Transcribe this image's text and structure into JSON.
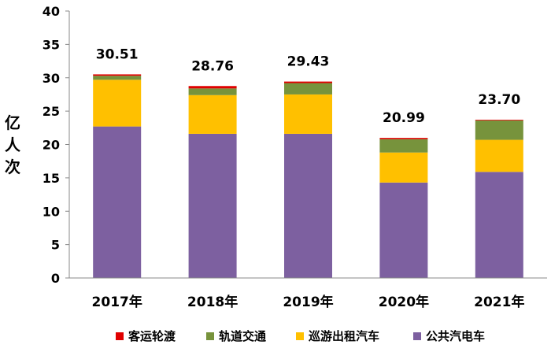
{
  "chart_data": {
    "type": "bar",
    "stacked": true,
    "categories": [
      "2017年",
      "2018年",
      "2019年",
      "2020年",
      "2021年"
    ],
    "ylabel": "亿人次",
    "ylim": [
      0,
      40
    ],
    "yticks": [
      0,
      5,
      10,
      15,
      20,
      25,
      30,
      35,
      40
    ],
    "grid": false,
    "legend_position": "bottom",
    "series": [
      {
        "name": "公共汽电车",
        "color": "#7d60a0",
        "values": [
          22.7,
          21.6,
          21.6,
          14.3,
          15.9
        ]
      },
      {
        "name": "巡游出租汽车",
        "color": "#ffc000",
        "values": [
          7.0,
          5.8,
          5.9,
          4.5,
          4.8
        ]
      },
      {
        "name": "轨道交通",
        "color": "#77933c",
        "values": [
          0.6,
          1.0,
          1.7,
          2.0,
          2.9
        ]
      },
      {
        "name": "客运轮渡",
        "color": "#e00000",
        "values": [
          0.21,
          0.36,
          0.23,
          0.19,
          0.1
        ]
      }
    ],
    "totals": [
      "30.51",
      "28.76",
      "29.43",
      "20.99",
      "23.70"
    ],
    "legend_order": [
      "客运轮渡",
      "轨道交通",
      "巡游出租汽车",
      "公共汽电车"
    ]
  }
}
